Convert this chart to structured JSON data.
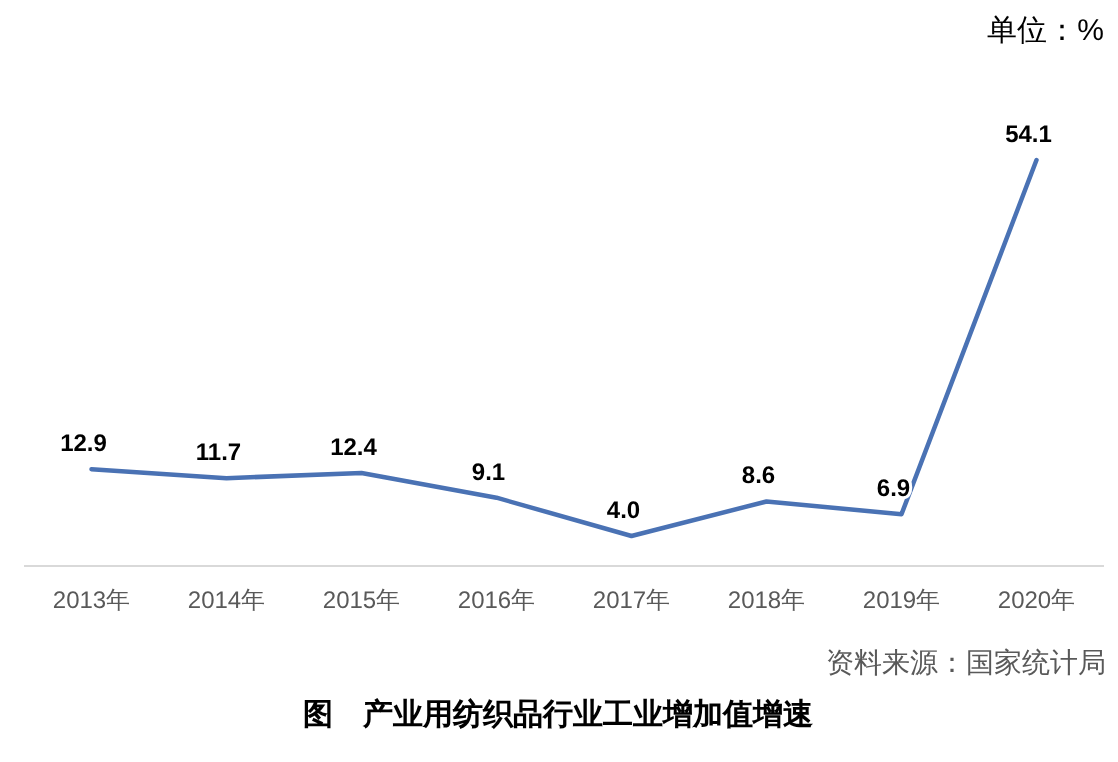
{
  "chart_data": {
    "type": "line",
    "title": "图　产业用纺织品行业工业增加值增速",
    "categories": [
      "2013年",
      "2014年",
      "2015年",
      "2016年",
      "2017年",
      "2018年",
      "2019年",
      "2020年"
    ],
    "series": [
      {
        "color": "#4a72b4",
        "values": [
          12.9,
          11.7,
          12.4,
          9.1,
          4.0,
          8.6,
          6.9,
          54.1
        ],
        "value_labels": [
          "12.9",
          "11.7",
          "12.4",
          "9.1",
          "4.0",
          "8.6",
          "6.9",
          "54.1"
        ]
      }
    ],
    "annotations": [
      "单位：%",
      "资料来源：国家统计局"
    ]
  }
}
